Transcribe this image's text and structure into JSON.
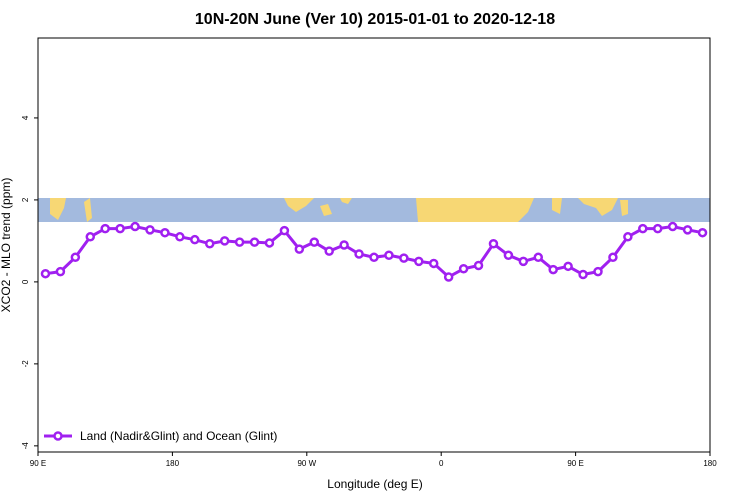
{
  "chart_data": {
    "type": "line",
    "title": "10N-20N June (Ver 10)   2015-01-01 to 2020-12-18",
    "x_label": "Longitude (deg E)",
    "y_label": "XCO2 - MLO trend (ppm)",
    "x": [
      95,
      105,
      115,
      125,
      135,
      145,
      155,
      165,
      175,
      185,
      195,
      205,
      215,
      225,
      235,
      245,
      255,
      265,
      275,
      285,
      295,
      305,
      315,
      325,
      335,
      345,
      355,
      365,
      375,
      385,
      395,
      405,
      415,
      425,
      435,
      445,
      455,
      465,
      475,
      485,
      495,
      505,
      515,
      525,
      535
    ],
    "series": [
      {
        "name": "Land (Nadir&Glint) and Ocean (Glint)",
        "color": "#a020f0",
        "values": [
          0.2,
          0.25,
          0.6,
          1.1,
          1.3,
          1.3,
          1.35,
          1.27,
          1.2,
          1.1,
          1.03,
          0.93,
          1.0,
          0.97,
          0.97,
          0.95,
          1.25,
          0.8,
          0.97,
          0.75,
          0.9,
          0.68,
          0.6,
          0.65,
          0.58,
          0.5,
          0.45,
          0.12,
          0.32,
          0.4,
          0.93,
          0.65,
          0.5,
          0.6,
          0.3,
          0.38,
          0.18,
          0.25,
          0.6,
          1.1,
          1.3,
          1.3,
          1.35,
          1.27,
          1.2
        ]
      }
    ],
    "xlim": [
      90,
      540
    ],
    "xticks": [
      {
        "value": 90,
        "label": "90 E"
      },
      180,
      {
        "value": 270,
        "label": "90 W"
      },
      {
        "value": 360,
        "label": "0"
      },
      {
        "value": 450,
        "label": "90 E"
      },
      {
        "value": 540,
        "label": "180"
      }
    ],
    "ylim": [
      -4.15,
      5.95
    ],
    "yticks": [
      -4,
      -2,
      0,
      2,
      4
    ],
    "grid": false,
    "legend": "bottom-left"
  }
}
